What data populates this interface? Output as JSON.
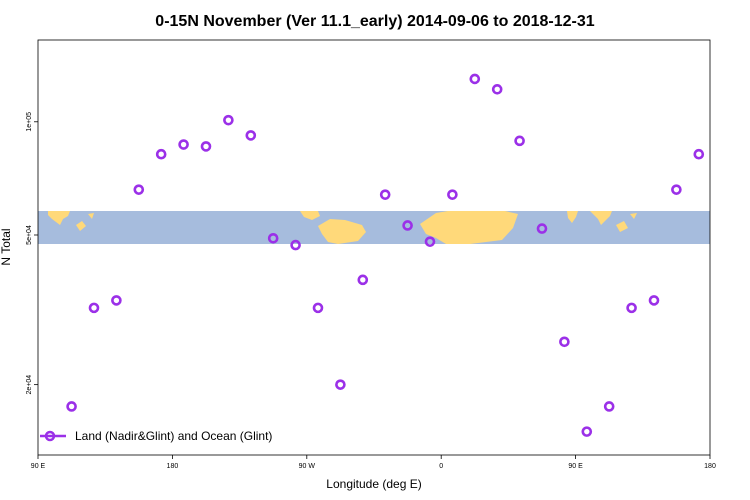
{
  "chart_data": {
    "type": "scatter",
    "title": "0-15N November (Ver 11.1_early)   2014-09-06 to 2018-12-31",
    "xlabel": "Longitude (deg E)",
    "ylabel": "N Total",
    "x_tick_labels": [
      "90 E",
      "180",
      "90 W",
      "0",
      "90 E",
      "180"
    ],
    "x_tick_positions": [
      90,
      180,
      270,
      360,
      450,
      540
    ],
    "xlim": [
      90,
      540
    ],
    "y_scale": "log",
    "y_tick_labels": [
      "2e+04",
      "5e+04",
      "1e+05"
    ],
    "y_tick_values": [
      20000,
      50000,
      100000
    ],
    "ylim": [
      13000,
      165000
    ],
    "map_band": {
      "lat_label": "0-15N",
      "land_color": "#FFD97A",
      "ocean_color": "#A6BCDD"
    },
    "series": [
      {
        "name": "Land (Nadir&Glint) and Ocean (Glint)",
        "color": "#9B30E8",
        "x": [
          112.5,
          127.5,
          142.5,
          157.5,
          172.5,
          187.5,
          202.5,
          217.5,
          232.5,
          247.5,
          262.5,
          277.5,
          292.5,
          307.5,
          322.5,
          337.5,
          352.5,
          367.5,
          382.5,
          397.5,
          412.5,
          427.5,
          442.5,
          457.5,
          472.5,
          487.5,
          502.5,
          517.5,
          532.5
        ],
        "y": [
          17500,
          32000,
          33500,
          66000,
          82000,
          87000,
          86000,
          101000,
          92000,
          49000,
          47000,
          32000,
          20000,
          38000,
          64000,
          53000,
          48000,
          64000,
          130000,
          122000,
          89000,
          52000,
          26000,
          15000,
          17500,
          32000,
          33500,
          66000,
          82000
        ]
      }
    ],
    "legend": {
      "position": "bottom-left",
      "label": "Land (Nadir&Glint) and Ocean (Glint)"
    }
  }
}
